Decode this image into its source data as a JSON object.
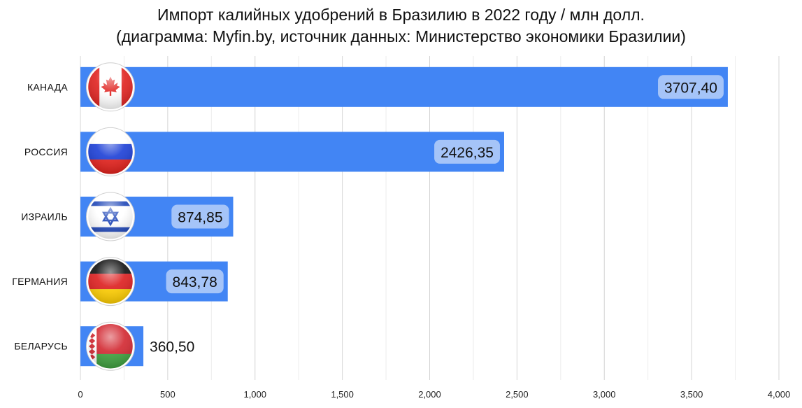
{
  "chart_data": {
    "type": "bar",
    "orientation": "horizontal",
    "title": "Импорт калийных удобрений в Бразилию в 2022 году / млн долл.",
    "subtitle": "(диаграмма: Myfin.by, источник данных: Министерство экономики Бразилии)",
    "categories": [
      "КАНАДА",
      "РОССИЯ",
      "ИЗРАИЛЬ",
      "ГЕРМАНИЯ",
      "БЕЛАРУСЬ"
    ],
    "values": [
      3707.4,
      2426.35,
      874.85,
      843.78,
      360.5
    ],
    "value_labels": [
      "3707,40",
      "2426,35",
      "874,85",
      "843,78",
      "360,50"
    ],
    "flag_icons": [
      "canada-flag-icon",
      "russia-flag-icon",
      "israel-flag-icon",
      "germany-flag-icon",
      "belarus-flag-icon"
    ],
    "xlim": [
      0,
      4000
    ],
    "x_ticks": [
      0,
      500,
      1000,
      1500,
      2000,
      2500,
      3000,
      3500,
      4000
    ],
    "x_tick_labels": [
      "0",
      "500",
      "1,000",
      "1,500",
      "2,000",
      "2,500",
      "3,000",
      "3,500",
      "4,000"
    ],
    "grid": "vertical",
    "bar_color": "#4285f4",
    "label_box_color": "#a5c4f8"
  }
}
